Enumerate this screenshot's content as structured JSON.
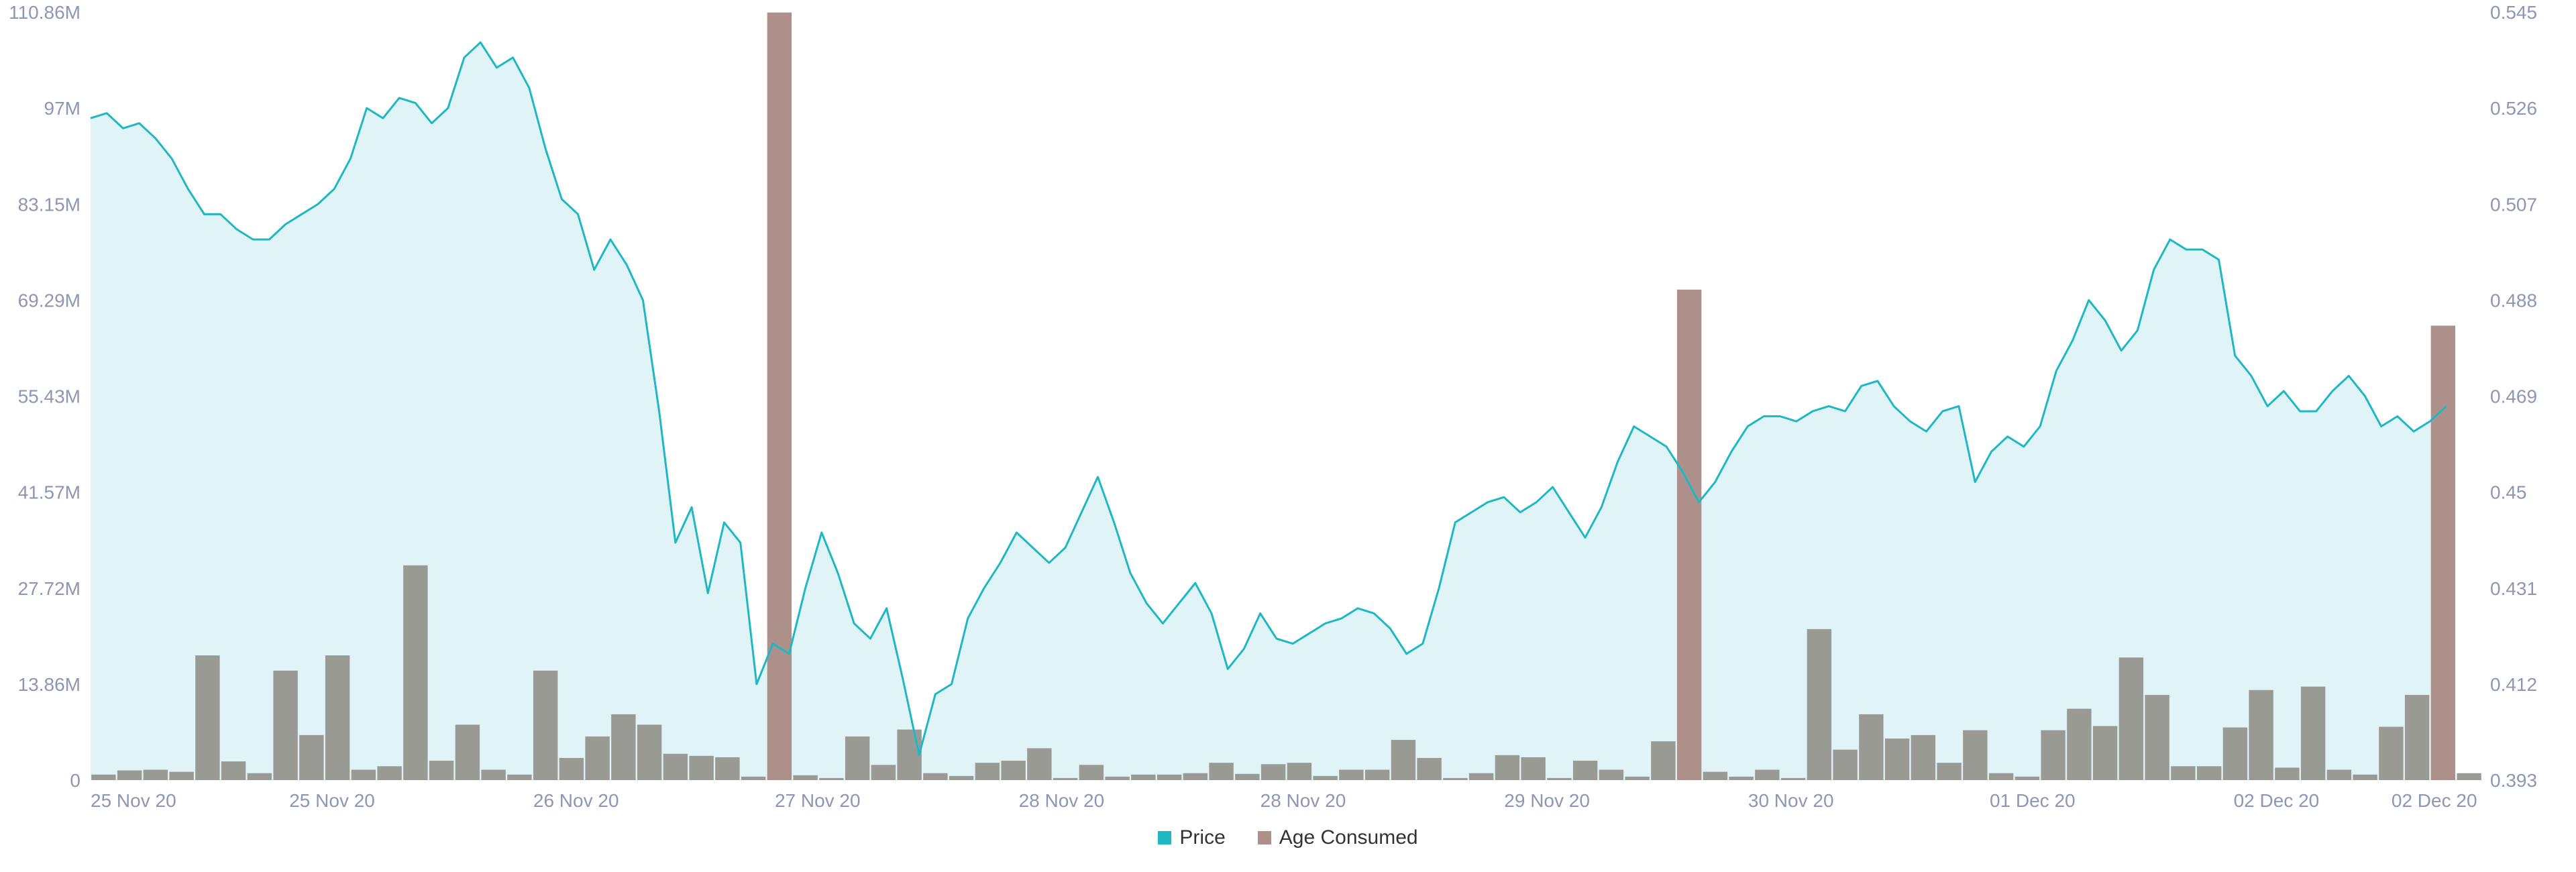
{
  "colors": {
    "price_line": "#1db8c4",
    "price_fill": "#e0f4f7",
    "bar_normal": "#9a9a94",
    "bar_spike": "#ad9089",
    "axis_text": "#8d97b5"
  },
  "legend": {
    "price_label": "Price",
    "age_label": "Age Consumed",
    "placement": "bottom-center"
  },
  "chart_data": {
    "type": "bar+area",
    "title": "",
    "grid": false,
    "y_left": {
      "ticks": [
        "0",
        "13.86M",
        "27.72M",
        "41.57M",
        "55.43M",
        "69.29M",
        "83.15M",
        "97M",
        "110.86M"
      ],
      "range": [
        0,
        110.86
      ]
    },
    "y_right": {
      "ticks": [
        "0.393",
        "0.412",
        "0.431",
        "0.45",
        "0.469",
        "0.488",
        "0.507",
        "0.526",
        "0.545"
      ],
      "range": [
        0.393,
        0.545
      ]
    },
    "x_ticks": [
      "25 Nov 20",
      "25 Nov 20",
      "26 Nov 20",
      "27 Nov 20",
      "28 Nov 20",
      "28 Nov 20",
      "29 Nov 20",
      "30 Nov 20",
      "01 Dec 20",
      "02 Dec 20",
      "02 Dec 20"
    ],
    "series": [
      {
        "name": "Age Consumed",
        "unit": "M",
        "values": [
          0.8,
          1.4,
          1.5,
          1.2,
          18.0,
          2.7,
          1.0,
          15.8,
          6.5,
          18.0,
          1.5,
          2.0,
          31.0,
          2.8,
          8.0,
          1.5,
          0.8,
          15.8,
          3.2,
          6.3,
          9.5,
          8.0,
          3.8,
          3.5,
          3.3,
          0.5,
          110.8,
          0.7,
          0.3,
          6.3,
          2.2,
          7.3,
          1.0,
          0.6,
          2.5,
          2.8,
          4.6,
          0.3,
          2.2,
          0.5,
          0.8,
          0.8,
          1.0,
          2.5,
          0.9,
          2.3,
          2.5,
          0.6,
          1.5,
          1.5,
          5.8,
          3.2,
          0.3,
          1.0,
          3.6,
          3.3,
          0.3,
          2.8,
          1.5,
          0.5,
          5.6,
          70.8,
          1.2,
          0.5,
          1.5,
          0.3,
          21.8,
          4.4,
          9.5,
          6.0,
          6.5,
          2.5,
          7.2,
          1.0,
          0.5,
          7.2,
          10.3,
          7.8,
          17.7,
          12.3,
          2.0,
          2.0,
          7.6,
          13.0,
          1.8,
          13.5,
          1.5,
          0.8,
          7.7,
          12.3,
          65.6,
          1.0
        ]
      },
      {
        "name": "Price",
        "points": [
          [
            0,
            0.524
          ],
          [
            1,
            0.525
          ],
          [
            2,
            0.522
          ],
          [
            3,
            0.523
          ],
          [
            4,
            0.52
          ],
          [
            5,
            0.516
          ],
          [
            6,
            0.51
          ],
          [
            7,
            0.505
          ],
          [
            8,
            0.505
          ],
          [
            9,
            0.502
          ],
          [
            10,
            0.5
          ],
          [
            11,
            0.5
          ],
          [
            12,
            0.503
          ],
          [
            13,
            0.505
          ],
          [
            14,
            0.507
          ],
          [
            15,
            0.51
          ],
          [
            16,
            0.516
          ],
          [
            17,
            0.526
          ],
          [
            18,
            0.524
          ],
          [
            19,
            0.528
          ],
          [
            20,
            0.527
          ],
          [
            21,
            0.523
          ],
          [
            22,
            0.526
          ],
          [
            23,
            0.536
          ],
          [
            24,
            0.539
          ],
          [
            25,
            0.534
          ],
          [
            26,
            0.536
          ],
          [
            27,
            0.53
          ],
          [
            28,
            0.518
          ],
          [
            29,
            0.508
          ],
          [
            30,
            0.505
          ],
          [
            31,
            0.494
          ],
          [
            32,
            0.5
          ],
          [
            33,
            0.495
          ],
          [
            34,
            0.488
          ],
          [
            35,
            0.466
          ],
          [
            36,
            0.44
          ],
          [
            37,
            0.447
          ],
          [
            38,
            0.43
          ],
          [
            39,
            0.444
          ],
          [
            40,
            0.44
          ],
          [
            41,
            0.412
          ],
          [
            42,
            0.42
          ],
          [
            43,
            0.418
          ],
          [
            44,
            0.431
          ],
          [
            45,
            0.442
          ],
          [
            46,
            0.434
          ],
          [
            47,
            0.424
          ],
          [
            48,
            0.421
          ],
          [
            49,
            0.427
          ],
          [
            50,
            0.413
          ],
          [
            51,
            0.398
          ],
          [
            52,
            0.41
          ],
          [
            53,
            0.412
          ],
          [
            54,
            0.425
          ],
          [
            55,
            0.431
          ],
          [
            56,
            0.436
          ],
          [
            57,
            0.442
          ],
          [
            58,
            0.439
          ],
          [
            59,
            0.436
          ],
          [
            60,
            0.439
          ],
          [
            61,
            0.446
          ],
          [
            62,
            0.453
          ],
          [
            63,
            0.444
          ],
          [
            64,
            0.434
          ],
          [
            65,
            0.428
          ],
          [
            66,
            0.424
          ],
          [
            67,
            0.428
          ],
          [
            68,
            0.432
          ],
          [
            69,
            0.426
          ],
          [
            70,
            0.415
          ],
          [
            71,
            0.419
          ],
          [
            72,
            0.426
          ],
          [
            73,
            0.421
          ],
          [
            74,
            0.42
          ],
          [
            75,
            0.422
          ],
          [
            76,
            0.424
          ],
          [
            77,
            0.425
          ],
          [
            78,
            0.427
          ],
          [
            79,
            0.426
          ],
          [
            80,
            0.423
          ],
          [
            81,
            0.418
          ],
          [
            82,
            0.42
          ],
          [
            83,
            0.431
          ],
          [
            84,
            0.444
          ],
          [
            85,
            0.446
          ],
          [
            86,
            0.448
          ],
          [
            87,
            0.449
          ],
          [
            88,
            0.446
          ],
          [
            89,
            0.448
          ],
          [
            90,
            0.451
          ],
          [
            91,
            0.446
          ],
          [
            92,
            0.441
          ],
          [
            93,
            0.447
          ],
          [
            94,
            0.456
          ],
          [
            95,
            0.463
          ],
          [
            96,
            0.461
          ],
          [
            97,
            0.459
          ],
          [
            98,
            0.454
          ],
          [
            99,
            0.448
          ],
          [
            100,
            0.452
          ],
          [
            101,
            0.458
          ],
          [
            102,
            0.463
          ],
          [
            103,
            0.465
          ],
          [
            104,
            0.465
          ],
          [
            105,
            0.464
          ],
          [
            106,
            0.466
          ],
          [
            107,
            0.467
          ],
          [
            108,
            0.466
          ],
          [
            109,
            0.471
          ],
          [
            110,
            0.472
          ],
          [
            111,
            0.467
          ],
          [
            112,
            0.464
          ],
          [
            113,
            0.462
          ],
          [
            114,
            0.466
          ],
          [
            115,
            0.467
          ],
          [
            116,
            0.452
          ],
          [
            117,
            0.458
          ],
          [
            118,
            0.461
          ],
          [
            119,
            0.459
          ],
          [
            120,
            0.463
          ],
          [
            121,
            0.474
          ],
          [
            122,
            0.48
          ],
          [
            123,
            0.488
          ],
          [
            124,
            0.484
          ],
          [
            125,
            0.478
          ],
          [
            126,
            0.482
          ],
          [
            127,
            0.494
          ],
          [
            128,
            0.5
          ],
          [
            129,
            0.498
          ],
          [
            130,
            0.498
          ],
          [
            131,
            0.496
          ],
          [
            132,
            0.477
          ],
          [
            133,
            0.473
          ],
          [
            134,
            0.467
          ],
          [
            135,
            0.47
          ],
          [
            136,
            0.466
          ],
          [
            137,
            0.466
          ],
          [
            138,
            0.47
          ],
          [
            139,
            0.473
          ],
          [
            140,
            0.469
          ],
          [
            141,
            0.463
          ],
          [
            142,
            0.465
          ],
          [
            143,
            0.462
          ],
          [
            144,
            0.464
          ],
          [
            145,
            0.467
          ]
        ]
      }
    ]
  }
}
